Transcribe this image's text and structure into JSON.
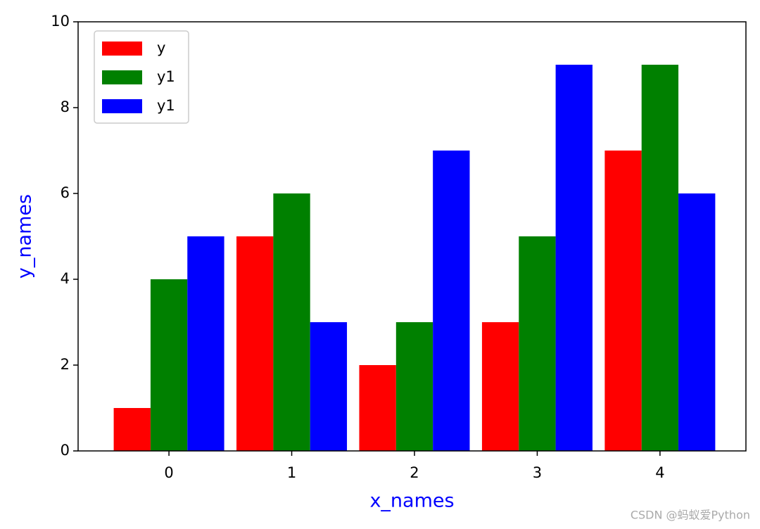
{
  "chart_data": {
    "type": "bar",
    "x_label": "x_names",
    "y_label": "y_names",
    "label_color": "#0000ff",
    "x": [
      0,
      1,
      2,
      3,
      4
    ],
    "series": [
      {
        "name": "y",
        "color": "#ff0000",
        "values": [
          1,
          5,
          2,
          3,
          7
        ]
      },
      {
        "name": "y1",
        "color": "#008000",
        "values": [
          4,
          6,
          3,
          5,
          9
        ]
      },
      {
        "name": "y1",
        "color": "#0000ff",
        "values": [
          5,
          3,
          7,
          9,
          6
        ]
      }
    ],
    "xlim": [
      -0.74,
      4.7
    ],
    "xticks": [
      0,
      1,
      2,
      3,
      4
    ],
    "ylim": [
      0,
      10
    ],
    "yticks": [
      0,
      2,
      4,
      6,
      8,
      10
    ],
    "legend": "upper left",
    "watermark": "CSDN @蚂蚁爱Python"
  }
}
